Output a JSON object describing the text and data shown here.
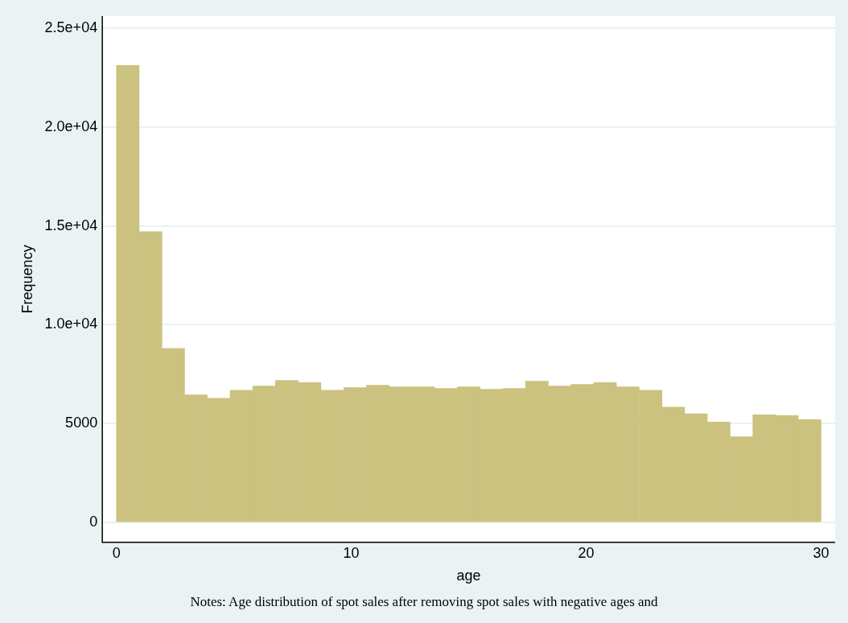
{
  "chart_data": {
    "type": "histogram",
    "xlabel": "age",
    "ylabel": "Frequency",
    "bins": [
      0,
      0.97,
      1.94,
      2.9,
      3.87,
      4.84,
      5.81,
      6.77,
      7.74,
      8.71,
      9.68,
      10.65,
      11.61,
      12.58,
      13.55,
      14.52,
      15.48,
      16.45,
      17.42,
      18.39,
      19.35,
      20.32,
      21.29,
      22.26,
      23.23,
      24.19,
      25.16,
      26.13,
      27.1,
      28.06,
      29.03,
      30
    ],
    "values": [
      23100,
      14700,
      8800,
      6450,
      6280,
      6690,
      6900,
      7190,
      7070,
      6690,
      6820,
      6940,
      6860,
      6860,
      6780,
      6860,
      6740,
      6780,
      7150,
      6900,
      6980,
      7070,
      6860,
      6690,
      5830,
      5500,
      5080,
      4340,
      5450,
      5410,
      5200
    ],
    "color": "#cbc280",
    "xlim": [
      -0.6,
      30.6
    ],
    "xticks": [
      0,
      10,
      20,
      30
    ],
    "ylim": [
      -1000,
      25600
    ],
    "yticks": [
      0,
      5000,
      {
        "value": 10000,
        "label": "1.0e+04"
      },
      {
        "value": 15000,
        "label": "1.5e+04"
      },
      {
        "value": 20000,
        "label": "2.0e+04"
      },
      {
        "value": 25000,
        "label": "2.5e+04"
      }
    ],
    "grid": "y",
    "annotations": [
      "Notes: Age distribution of spot sales after removing spot sales with negative ages and"
    ]
  }
}
